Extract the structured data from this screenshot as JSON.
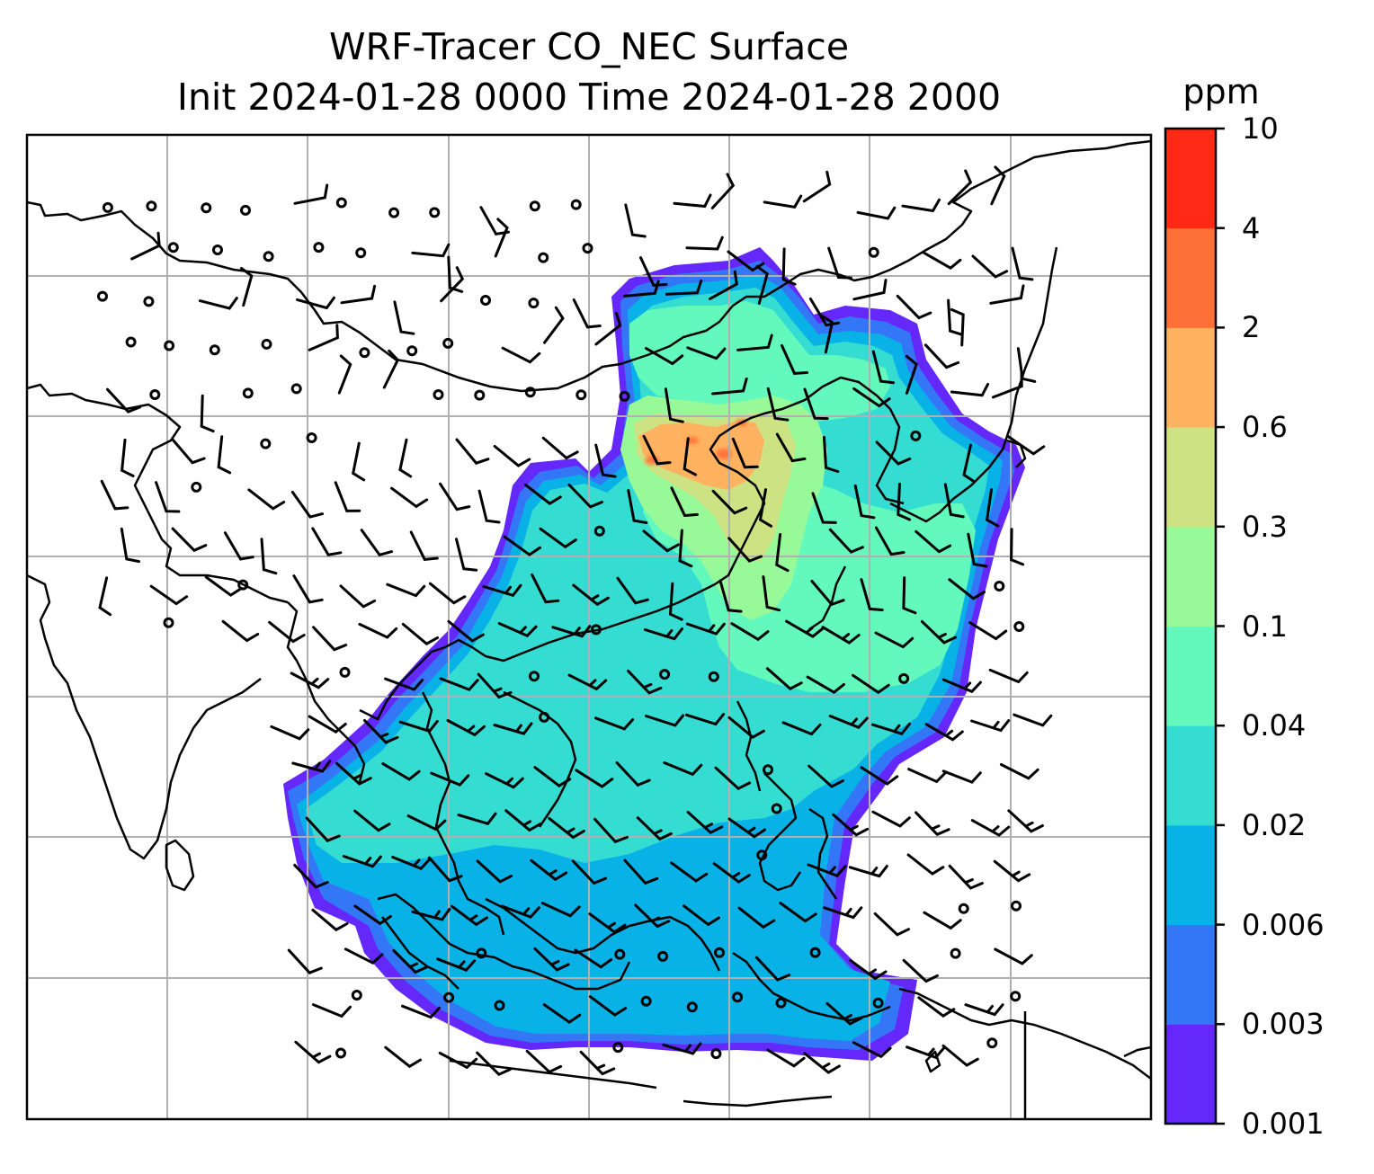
{
  "title": {
    "line1": "WRF-Tracer CO_NEC Surface",
    "line2": "Init 2024-01-28 0000 Time 2024-01-28 2000"
  },
  "colorbar": {
    "unit": "ppm",
    "levels": [
      "0.001",
      "0.003",
      "0.006",
      "0.02",
      "0.04",
      "0.1",
      "0.3",
      "0.6",
      "2",
      "4",
      "10"
    ],
    "colors": [
      "#6428fb",
      "#3477f6",
      "#08b2e6",
      "#34dcd2",
      "#64f9bc",
      "#98f999",
      "#cde283",
      "#ffb360",
      "#ff7038",
      "#ff2a15"
    ]
  },
  "map": {
    "variable": "CO_NEC",
    "level": "Surface",
    "gridlines": true,
    "wind_barbs": true
  }
}
